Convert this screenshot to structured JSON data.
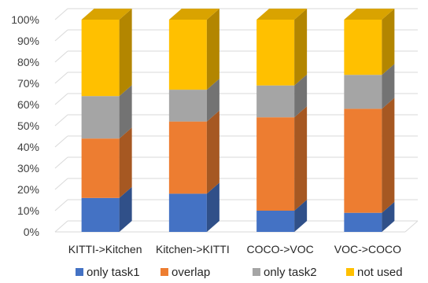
{
  "chart_data": {
    "type": "bar",
    "subtype": "stacked-100-3d",
    "categories": [
      "KITTI->Kitchen",
      "Kitchen->KITTI",
      "COCO->VOC",
      "VOC->COCO"
    ],
    "series": [
      {
        "name": "only task1",
        "color": "#4472C4",
        "values": [
          16,
          18,
          10,
          9
        ]
      },
      {
        "name": "overlap",
        "color": "#ED7D31",
        "values": [
          28,
          34,
          44,
          49
        ]
      },
      {
        "name": "only task2",
        "color": "#A5A5A5",
        "values": [
          20,
          15,
          15,
          16
        ]
      },
      {
        "name": "not used",
        "color": "#FFC000",
        "values": [
          36,
          33,
          31,
          26
        ]
      }
    ],
    "yticks": [
      "0%",
      "10%",
      "20%",
      "30%",
      "40%",
      "50%",
      "60%",
      "70%",
      "80%",
      "90%",
      "100%"
    ],
    "ylim": [
      0,
      100
    ],
    "grid": true,
    "legend_position": "bottom"
  }
}
